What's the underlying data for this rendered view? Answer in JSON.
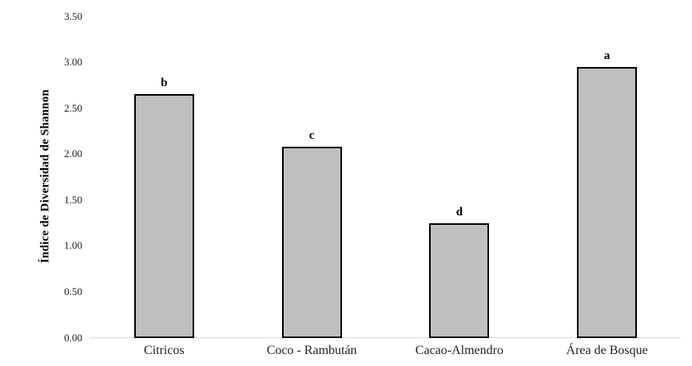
{
  "chart_data": {
    "type": "bar",
    "title": "",
    "xlabel": "",
    "ylabel": "Índice de Diversidad de Shannon",
    "categories": [
      "Citricos",
      "Coco - Rambután",
      "Cacao-Almendro",
      "Área de Bosque"
    ],
    "values": [
      2.65,
      2.08,
      1.24,
      2.94
    ],
    "significance_letters": [
      "b",
      "c",
      "d",
      "a"
    ],
    "ylim": [
      0,
      3.5
    ],
    "ytick_step": 0.5,
    "ytick_labels": [
      "0.00",
      "0.50",
      "1.00",
      "1.50",
      "2.00",
      "2.50",
      "3.00",
      "3.50"
    ],
    "grid": false,
    "legend": false,
    "colors": {
      "bar_fill": "#bfbfbf",
      "bar_border": "#000000",
      "axis_line": "#d9d9d9",
      "text": "#000000"
    }
  }
}
